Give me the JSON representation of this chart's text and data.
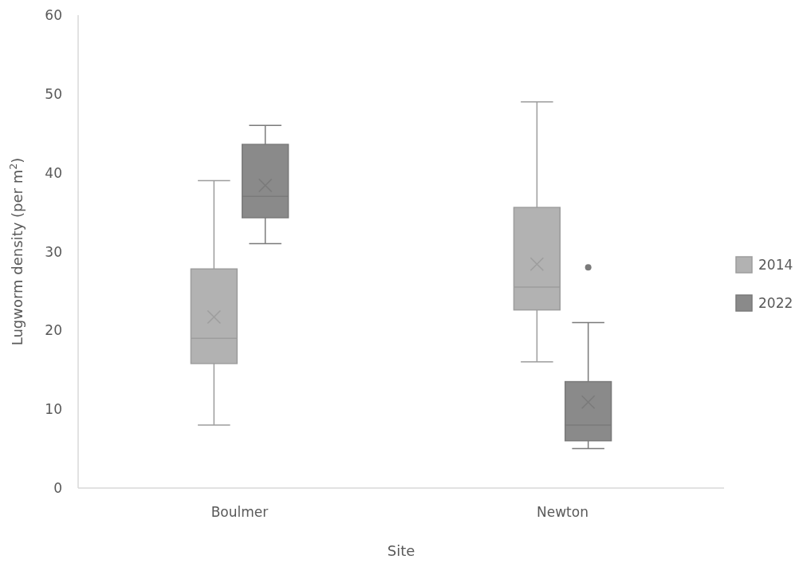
{
  "chart_data": {
    "type": "box",
    "xlabel": "Site",
    "ylabel": "Lugworm density (per m$^{2}$)",
    "categories": [
      "Boulmer",
      "Newton"
    ],
    "series": [
      {
        "name": "2014",
        "color": "#b2b2b2",
        "boxes": [
          {
            "low": 8,
            "q1": 15.8,
            "median": 19,
            "q3": 27.8,
            "high": 39,
            "mean": 21.7
          },
          {
            "low": 16,
            "q1": 22.6,
            "median": 25.5,
            "q3": 35.6,
            "high": 49,
            "mean": 28.4
          }
        ]
      },
      {
        "name": "2022",
        "color": "#8a8a8a",
        "boxes": [
          {
            "low": 31,
            "q1": 34.3,
            "median": 37,
            "q3": 43.6,
            "high": 46,
            "mean": 38.4
          },
          {
            "low": 5,
            "q1": 6,
            "median": 8,
            "q3": 13.5,
            "high": 21,
            "mean": 10.9,
            "outliers": [
              28
            ]
          }
        ]
      }
    ],
    "ylim": [
      0,
      60
    ],
    "yticks": [
      0,
      10,
      20,
      30,
      40,
      50,
      60
    ],
    "grid": false,
    "legend": "right",
    "marker": "cross"
  }
}
